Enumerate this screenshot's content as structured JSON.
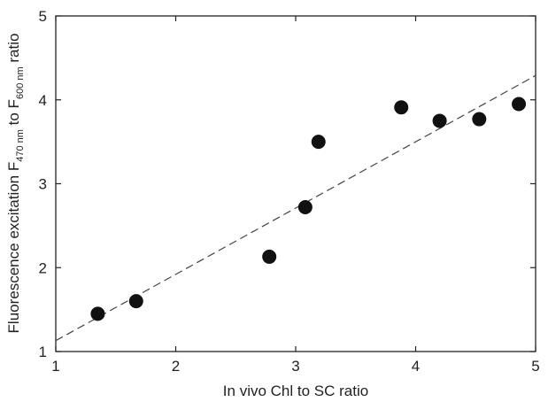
{
  "chart_data": {
    "type": "scatter",
    "title": "",
    "xlabel": "In vivo Chl to SC ratio",
    "ylabel": {
      "main": "Fluorescence excitation F",
      "sub1": "470 nm",
      "mid": " to F",
      "sub2": "600 nm",
      "end": " ratio"
    },
    "xlim": [
      1,
      5
    ],
    "ylim": [
      1,
      5
    ],
    "x_ticks": [
      "1",
      "2",
      "3",
      "4",
      "5"
    ],
    "y_ticks": [
      "1",
      "2",
      "3",
      "4",
      "5"
    ],
    "grid": false,
    "series": [
      {
        "marker": "filled-circle",
        "color": "#111111",
        "points": [
          {
            "x": 1.35,
            "y": 1.45
          },
          {
            "x": 1.67,
            "y": 1.6
          },
          {
            "x": 2.78,
            "y": 2.13
          },
          {
            "x": 3.08,
            "y": 2.72
          },
          {
            "x": 3.19,
            "y": 3.5
          },
          {
            "x": 3.88,
            "y": 3.91
          },
          {
            "x": 4.2,
            "y": 3.75
          },
          {
            "x": 4.53,
            "y": 3.77
          },
          {
            "x": 4.86,
            "y": 3.95
          }
        ]
      }
    ],
    "trendline": {
      "style": "dashed",
      "color": "#444444",
      "x": [
        1,
        5
      ],
      "y": [
        1.13,
        4.29
      ]
    }
  }
}
